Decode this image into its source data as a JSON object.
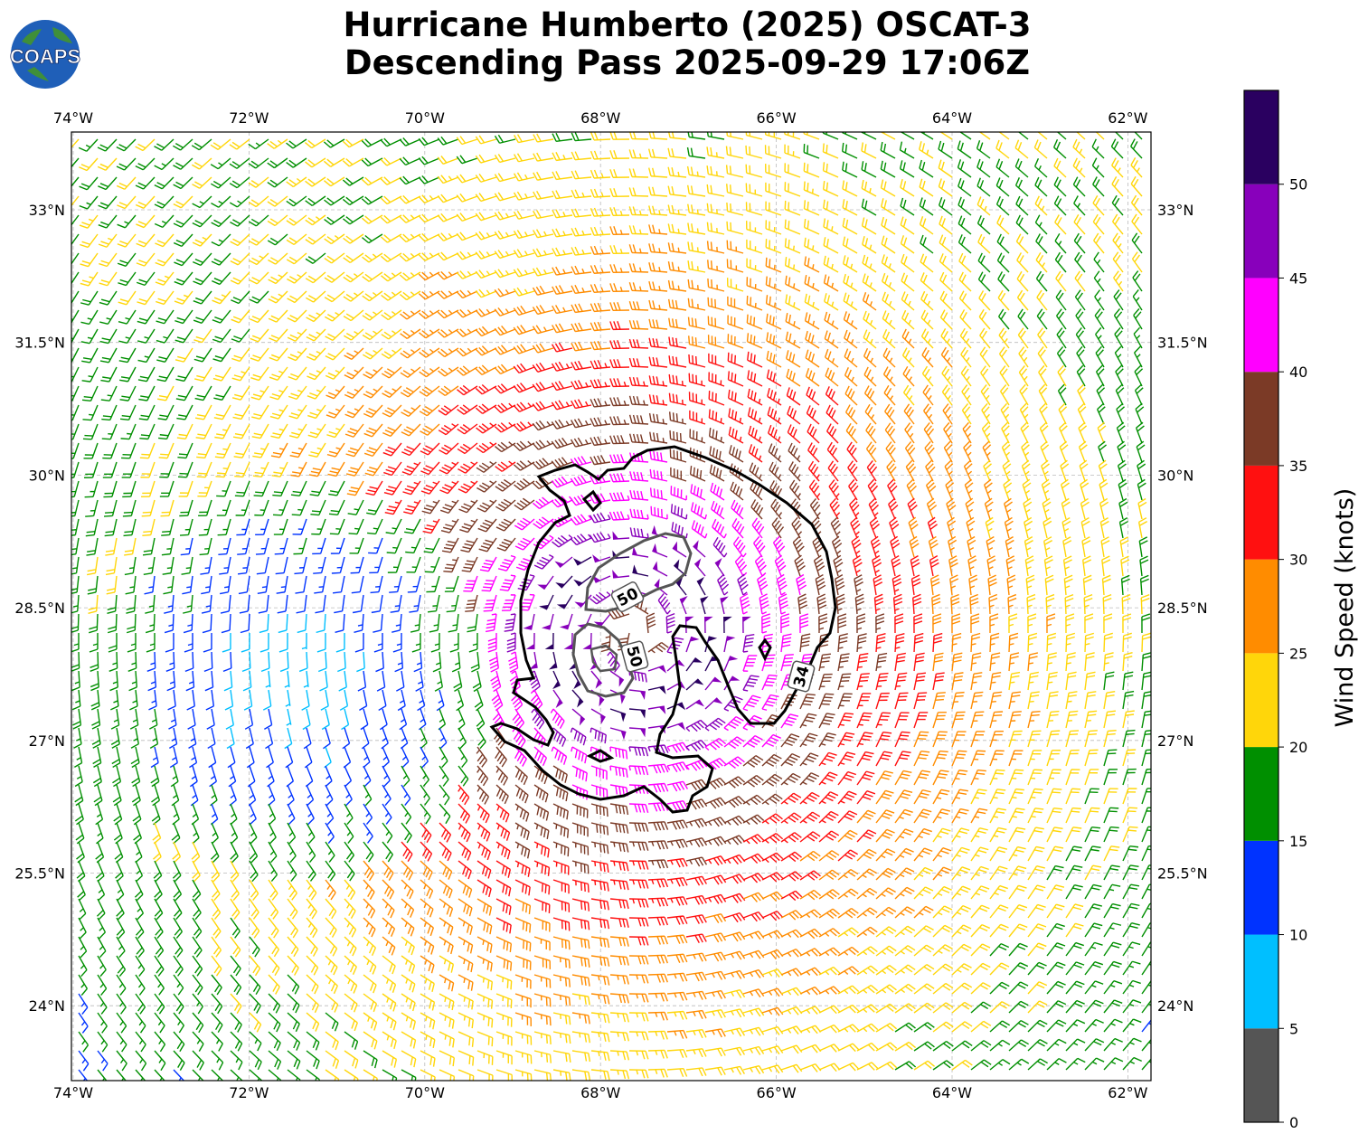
{
  "header": {
    "title_line1": "Hurricane Humberto (2025) OSCAT-3",
    "title_line2": "Descending Pass 2025-09-29 17:06Z",
    "logo_text": "COAPS"
  },
  "map": {
    "lon_ticks": [
      "74°W",
      "72°W",
      "70°W",
      "68°W",
      "66°W",
      "64°W",
      "62°W"
    ],
    "lat_ticks": [
      "33°N",
      "31.5°N",
      "30°N",
      "28.5°N",
      "27°N",
      "25.5°N",
      "24°N"
    ],
    "contour_labels": [
      "50",
      "50",
      "34"
    ],
    "storm_center": {
      "lon": -67.6,
      "lat": 28.2
    }
  },
  "colorbar": {
    "label": "Wind Speed (knots)",
    "ticks": [
      "0",
      "5",
      "10",
      "15",
      "20",
      "25",
      "30",
      "35",
      "40",
      "45",
      "50"
    ],
    "bands": [
      {
        "min": 0,
        "max": 5,
        "color": "#555555"
      },
      {
        "min": 5,
        "max": 10,
        "color": "#00bfff"
      },
      {
        "min": 10,
        "max": 15,
        "color": "#0033ff"
      },
      {
        "min": 15,
        "max": 20,
        "color": "#008f00"
      },
      {
        "min": 20,
        "max": 25,
        "color": "#ffd60a"
      },
      {
        "min": 25,
        "max": 30,
        "color": "#ff8c00"
      },
      {
        "min": 30,
        "max": 35,
        "color": "#ff1010"
      },
      {
        "min": 35,
        "max": 40,
        "color": "#7b3a26"
      },
      {
        "min": 40,
        "max": 45,
        "color": "#ff00ff"
      },
      {
        "min": 45,
        "max": 50,
        "color": "#8800bb"
      },
      {
        "min": 50,
        "max": 55,
        "color": "#2a0060"
      }
    ]
  }
}
